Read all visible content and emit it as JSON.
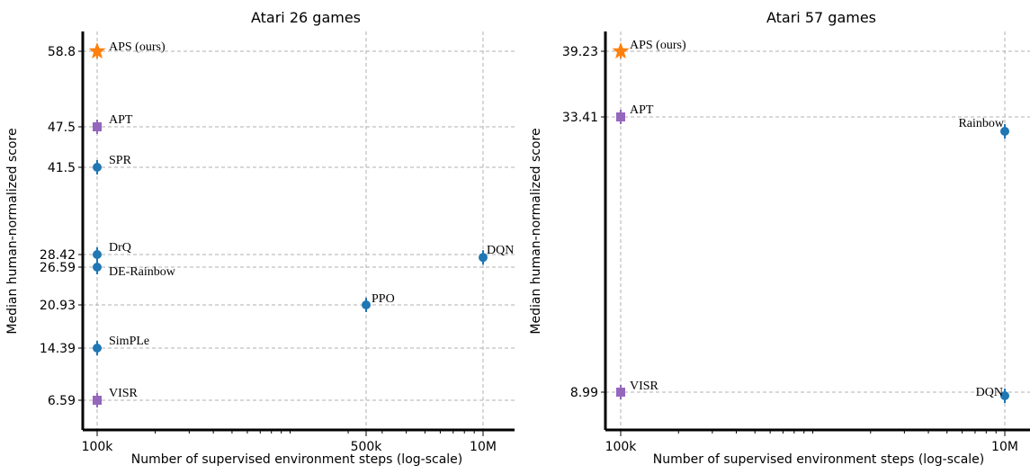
{
  "chart_data": [
    {
      "type": "scatter",
      "title": "Atari 26 games",
      "xlabel": "Number of supervised environment steps (log-scale)",
      "ylabel": "Median human-normalized score",
      "x_scale": "log",
      "x_ticks": [
        {
          "value": 100000,
          "label": "100k"
        },
        {
          "value": 500000,
          "label": "500k"
        },
        {
          "value": 10000000,
          "label": "10M"
        }
      ],
      "y_ticks": [
        6.59,
        14.39,
        20.93,
        26.59,
        28.42,
        41.5,
        47.5,
        58.8
      ],
      "y_tick_labels": [
        "6.59",
        "14.39",
        "20.93",
        "26.59",
        "28.42",
        "41.5",
        "47.5",
        "58.8"
      ],
      "grid": "dashed",
      "points": [
        {
          "label": "APS (ours)",
          "x": 100000,
          "y": 58.8,
          "marker": "star",
          "color": "#ff7f0e"
        },
        {
          "label": "APT",
          "x": 100000,
          "y": 47.5,
          "marker": "square",
          "color": "#9467bd"
        },
        {
          "label": "SPR",
          "x": 100000,
          "y": 41.5,
          "marker": "circle",
          "color": "#1f77b4"
        },
        {
          "label": "DrQ",
          "x": 100000,
          "y": 28.42,
          "marker": "circle",
          "color": "#1f77b4"
        },
        {
          "label": "DE-Rainbow",
          "x": 100000,
          "y": 26.59,
          "marker": "circle",
          "color": "#1f77b4"
        },
        {
          "label": "SimPLe",
          "x": 100000,
          "y": 14.39,
          "marker": "circle",
          "color": "#1f77b4"
        },
        {
          "label": "VISR",
          "x": 100000,
          "y": 6.59,
          "marker": "square",
          "color": "#9467bd"
        },
        {
          "label": "PPO",
          "x": 500000,
          "y": 20.93,
          "marker": "circle",
          "color": "#1f77b4"
        },
        {
          "label": "DQN",
          "x": 10000000,
          "y": 28.0,
          "marker": "circle",
          "color": "#1f77b4"
        }
      ]
    },
    {
      "type": "scatter",
      "title": "Atari 57 games",
      "xlabel": "Number of supervised environment steps (log-scale)",
      "ylabel": "Median human-normalized score",
      "x_scale": "log",
      "x_ticks": [
        {
          "value": 100000,
          "label": "100k"
        },
        {
          "value": 10000000,
          "label": "10M"
        }
      ],
      "y_ticks": [
        8.99,
        33.41,
        39.23
      ],
      "y_tick_labels": [
        "8.99",
        "33.41",
        "39.23"
      ],
      "grid": "dashed",
      "points": [
        {
          "label": "APS (ours)",
          "x": 100000,
          "y": 39.23,
          "marker": "star",
          "color": "#ff7f0e"
        },
        {
          "label": "APT",
          "x": 100000,
          "y": 33.41,
          "marker": "square",
          "color": "#9467bd"
        },
        {
          "label": "VISR",
          "x": 100000,
          "y": 8.99,
          "marker": "square",
          "color": "#9467bd"
        },
        {
          "label": "Rainbow",
          "x": 10000000,
          "y": 31.9,
          "marker": "circle",
          "color": "#1f77b4"
        },
        {
          "label": "DQN",
          "x": 10000000,
          "y": 8.7,
          "marker": "circle",
          "color": "#1f77b4"
        }
      ]
    }
  ]
}
